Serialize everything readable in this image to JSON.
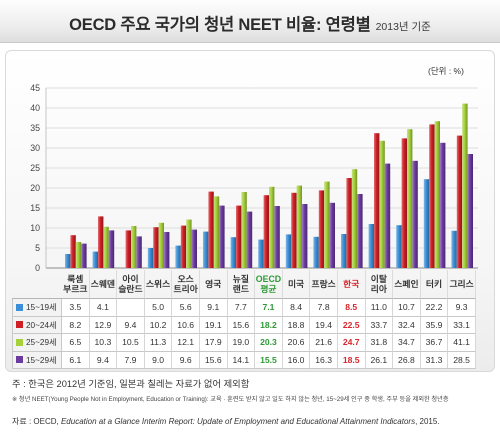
{
  "chart_data": {
    "type": "bar",
    "title": "OECD 주요 국가의 청년 NEET 비율: 연령별",
    "subtitle": "2013년 기준",
    "unit": "(단위 : %)",
    "ylim": [
      0,
      45
    ],
    "yticks": [
      0,
      5,
      10,
      15,
      20,
      25,
      30,
      35,
      40,
      45
    ],
    "grid": true,
    "legend": "bottom-left",
    "categories": [
      "룩셈\n부르크",
      "스웨덴",
      "아이\n슬란드",
      "스위스",
      "오스\n트리아",
      "영국",
      "뉴질\n랜드",
      "OECD\n평균",
      "미국",
      "프랑스",
      "한국",
      "이탈\n리아",
      "스페인",
      "터키",
      "그리스"
    ],
    "highlight": {
      "7": "#2e9a36",
      "10": "#d8262c"
    },
    "series": [
      {
        "name": "15~19세",
        "color": "#3a8fd8",
        "values": [
          3.5,
          4.1,
          null,
          5.0,
          5.6,
          9.1,
          7.7,
          7.1,
          8.4,
          7.8,
          8.5,
          11.0,
          10.7,
          22.2,
          9.3
        ]
      },
      {
        "name": "20~24세",
        "color": "#cf1f25",
        "values": [
          8.2,
          12.9,
          9.4,
          10.2,
          10.6,
          19.1,
          15.6,
          18.2,
          18.8,
          19.4,
          22.5,
          33.7,
          32.4,
          35.9,
          33.1
        ]
      },
      {
        "name": "25~29세",
        "color": "#a6d13a",
        "values": [
          6.5,
          10.3,
          10.5,
          11.3,
          12.1,
          17.9,
          19.0,
          20.3,
          20.6,
          21.6,
          24.7,
          31.8,
          34.7,
          36.7,
          41.1
        ]
      },
      {
        "name": "15~29세",
        "color": "#6b3aa0",
        "values": [
          6.1,
          9.4,
          7.9,
          9.0,
          9.6,
          15.6,
          14.1,
          15.5,
          16.0,
          16.3,
          18.5,
          26.1,
          26.8,
          31.3,
          28.5
        ]
      }
    ]
  },
  "notes": {
    "note": "주 : 한국은 2012년 기준임, 일본과 칠레는 자료가 없어 제외함",
    "definition": "※ 청년 NEET(Young People Not in Employment, Education or Training): 교육 · 훈련도 받지 않고 일도 하지 않는 청년, 15~29세 인구 중 학생, 주부 등을 제외한 청년층",
    "source_prefix": "자료 : OECD, ",
    "source_title": "Education at a Glance Interim Report: Update of Employment and Educational Attainment Indicators",
    "source_suffix": ", 2015."
  }
}
